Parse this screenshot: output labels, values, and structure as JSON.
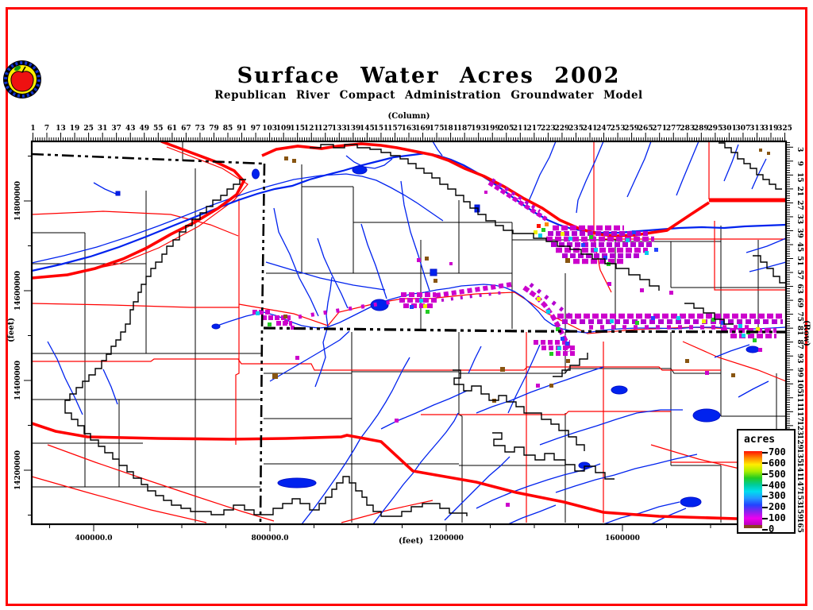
{
  "window": {
    "background": "#ffffff",
    "border_color": "#ff0000"
  },
  "header": {
    "title": "Surface Water Acres 2002",
    "subtitle": "Republican River Compact Administration Groundwater Model",
    "logo": {
      "name": "apple-seal-logo",
      "ring_color": "#000000",
      "band_color": "#1133cc",
      "face_color": "#ffee00",
      "apple_color": "#ee1111",
      "leaf_color": "#119911"
    }
  },
  "axes": {
    "column": {
      "label": "(Column)",
      "ticks": [
        1,
        7,
        13,
        19,
        25,
        31,
        37,
        43,
        49,
        55,
        61,
        67,
        73,
        79,
        85,
        91,
        97,
        103,
        109,
        115,
        121,
        127,
        133,
        139,
        145,
        151,
        157,
        163,
        169,
        175,
        181,
        187,
        193,
        199,
        205,
        211,
        217,
        223,
        229,
        235,
        241,
        247,
        253,
        259,
        265,
        271,
        277,
        283,
        289,
        295,
        301,
        307,
        313,
        319,
        325
      ]
    },
    "row": {
      "label": "(Row)",
      "ticks": [
        3,
        9,
        15,
        21,
        27,
        33,
        39,
        45,
        51,
        57,
        63,
        69,
        75,
        81,
        87,
        93,
        99,
        105,
        111,
        117,
        123,
        129,
        135,
        141,
        147,
        153,
        159,
        165
      ]
    },
    "left": {
      "label": "(feet)",
      "ticks": [
        "14800000",
        "14600000",
        "14400000",
        "14200000"
      ]
    },
    "bottom": {
      "label": "(feet)",
      "ticks": [
        "400000.0",
        "800000.0",
        "1200000",
        "1600000"
      ]
    }
  },
  "legend": {
    "title": "acres",
    "tick_values": [
      700,
      600,
      500,
      400,
      300,
      200,
      100,
      0
    ],
    "gradient_top_to_bottom": [
      "#ff1100",
      "#ff8800",
      "#ffee00",
      "#aaee00",
      "#22cc22",
      "#00cc99",
      "#00ddee",
      "#2299ff",
      "#2244ff",
      "#8822ee",
      "#ee00ee",
      "#bb00bb"
    ],
    "zero_color": "#884422"
  },
  "map": {
    "colors": {
      "stream": "#0022ee",
      "lake": "#0022ee",
      "highway_major": "#ff0000",
      "road": "#ff0000",
      "county_boundary": "#000000",
      "state_boundary": "#000000",
      "model_boundary": "#000000",
      "cell_low_acres": "#cc00cc",
      "cell_accents": [
        "#00ccee",
        "#2244ff",
        "#22cc22",
        "#eeee00",
        "#ff8800",
        "#ff1100",
        "#885511"
      ]
    }
  }
}
